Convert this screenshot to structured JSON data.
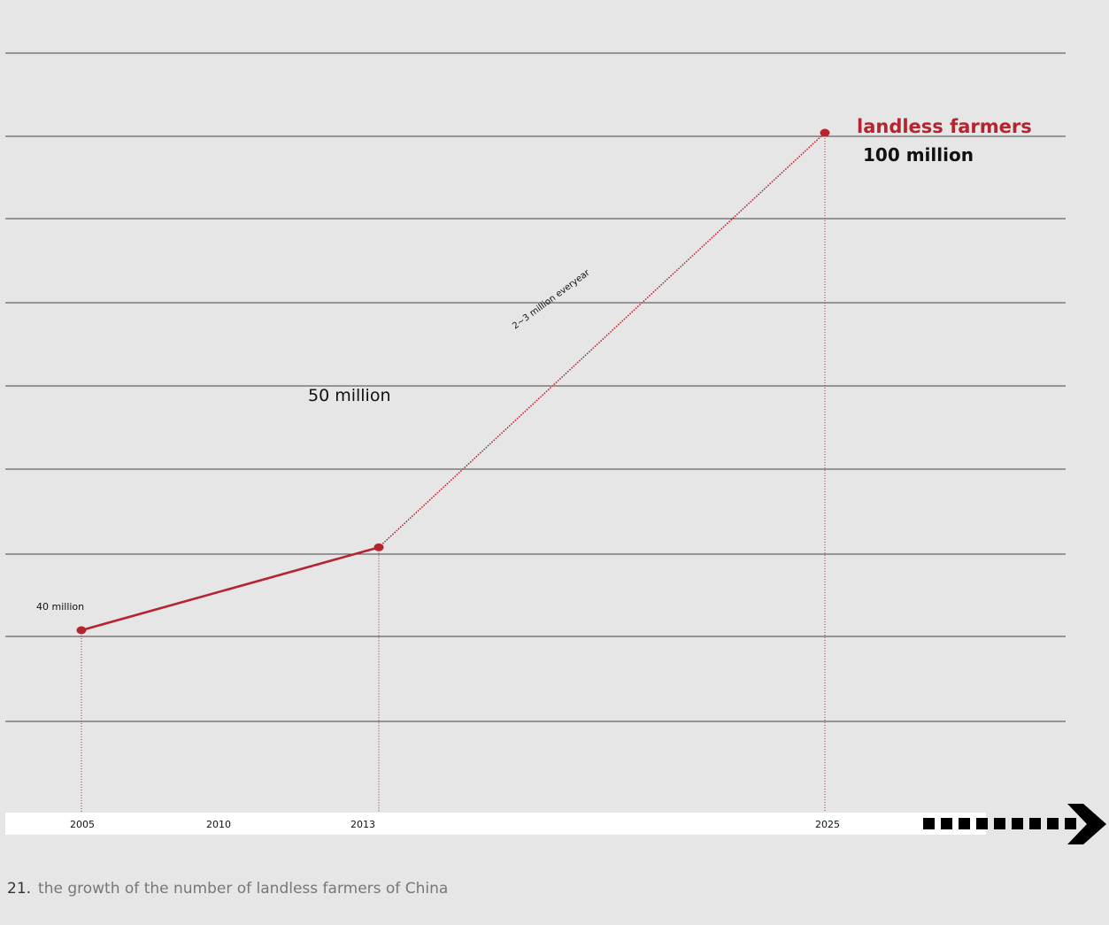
{
  "chart_data": {
    "type": "line",
    "title": "landless farmers",
    "accent_color": "#b5242f",
    "x_ticks": [
      "2005",
      "2010",
      "2013",
      "2025"
    ],
    "series": [
      {
        "name": "",
        "style": "solid",
        "points": [
          {
            "x": 2005,
            "y": 40
          },
          {
            "x": 2013,
            "y": 50
          }
        ]
      },
      {
        "name": "",
        "style": "dotted",
        "points": [
          {
            "x": 2013,
            "y": 50
          },
          {
            "x": 2025,
            "y": 100
          }
        ]
      }
    ],
    "data_labels": {
      "y2005": "40 million",
      "y2013": "50 million",
      "y2025": "100 million"
    },
    "annotation": "2~3 million everyear",
    "grid": true,
    "legend": "none"
  },
  "caption": {
    "number": "21.",
    "text": "the growth of the number of landless farmers of China"
  }
}
